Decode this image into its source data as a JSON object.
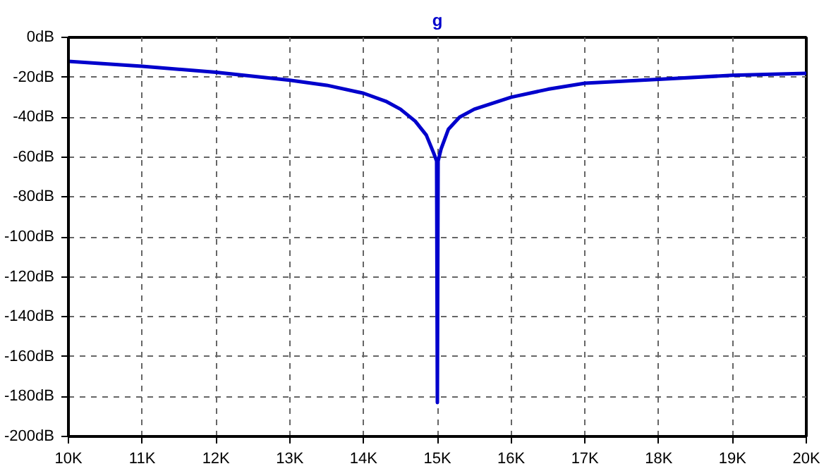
{
  "chart_data": {
    "type": "line",
    "title": "g",
    "grid": true,
    "line_style": "solid",
    "xlim": [
      10000,
      20000
    ],
    "ylim": [
      -200,
      0
    ],
    "xticks": [
      {
        "value": 10000,
        "label": "10K"
      },
      {
        "value": 11000,
        "label": "11K"
      },
      {
        "value": 12000,
        "label": "12K"
      },
      {
        "value": 13000,
        "label": "13K"
      },
      {
        "value": 14000,
        "label": "14K"
      },
      {
        "value": 15000,
        "label": "15K"
      },
      {
        "value": 16000,
        "label": "16K"
      },
      {
        "value": 17000,
        "label": "17K"
      },
      {
        "value": 18000,
        "label": "18K"
      },
      {
        "value": 19000,
        "label": "19K"
      },
      {
        "value": 20000,
        "label": "20K"
      }
    ],
    "yticks": [
      {
        "value": 0,
        "label": "0dB"
      },
      {
        "value": -20,
        "label": "-20dB"
      },
      {
        "value": -40,
        "label": "-40dB"
      },
      {
        "value": -60,
        "label": "-60dB"
      },
      {
        "value": -80,
        "label": "-80dB"
      },
      {
        "value": -100,
        "label": "-100dB"
      },
      {
        "value": -120,
        "label": "-120dB"
      },
      {
        "value": -140,
        "label": "-140dB"
      },
      {
        "value": -160,
        "label": "-160dB"
      },
      {
        "value": -180,
        "label": "-180dB"
      },
      {
        "value": -200,
        "label": "-200dB"
      }
    ],
    "x": [
      10000,
      11000,
      12000,
      13000,
      13500,
      14000,
      14300,
      14500,
      14700,
      14850,
      14950,
      14990,
      15000,
      15010,
      15050,
      15150,
      15300,
      15500,
      16000,
      16500,
      17000,
      18000,
      19000,
      20000
    ],
    "series": [
      {
        "color": "#0000cc",
        "values": [
          -12,
          -14.5,
          -17.5,
          -21.5,
          -24,
          -28,
          -32,
          -36,
          -42,
          -49,
          -58,
          -62,
          -183,
          -62,
          -56,
          -46,
          -40,
          -36,
          -30,
          -26,
          -23,
          -21,
          -19,
          -18
        ]
      }
    ]
  }
}
